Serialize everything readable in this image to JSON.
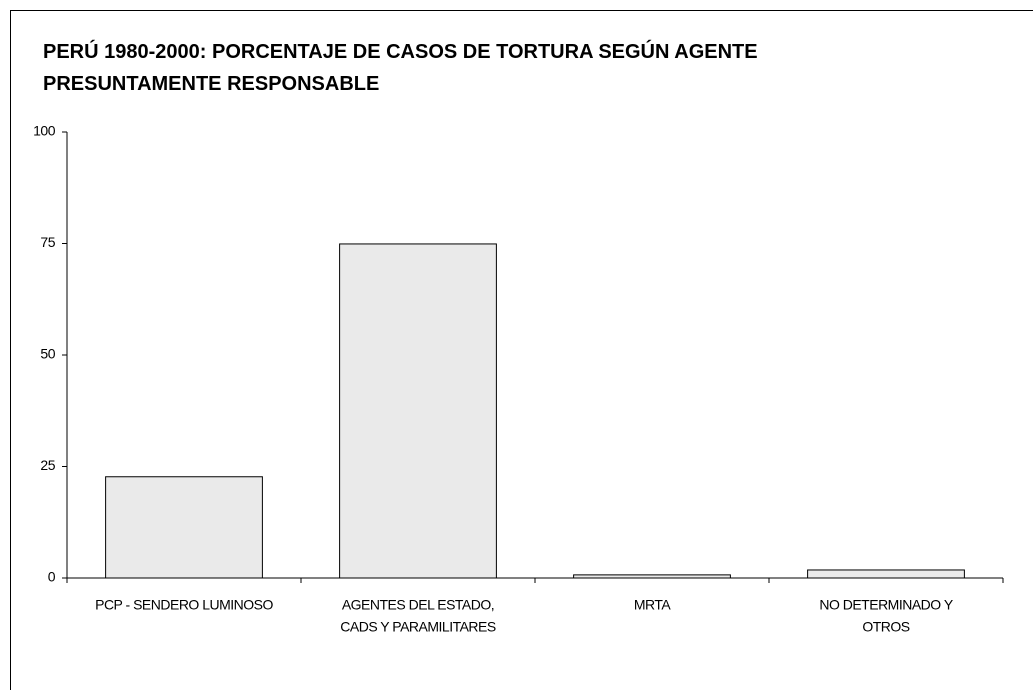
{
  "chart_data": {
    "type": "bar",
    "title": "PERÚ 1980-2000: PORCENTAJE DE CASOS DE TORTURA SEGÚN AGENTE PRESUNTAMENTE RESPONSABLE",
    "categories": [
      [
        "PCP - SENDERO LUMINOSO"
      ],
      [
        "AGENTES DEL ESTADO,",
        "CADS Y PARAMILITARES"
      ],
      [
        "MRTA"
      ],
      [
        "NO DETERMINADO Y",
        "OTROS"
      ]
    ],
    "values": [
      22.7,
      74.9,
      0.7,
      1.8
    ],
    "color": "#eaeaea",
    "ylim": [
      0,
      100
    ],
    "yticks": [
      0,
      25,
      50,
      75,
      100
    ],
    "grid": false
  }
}
